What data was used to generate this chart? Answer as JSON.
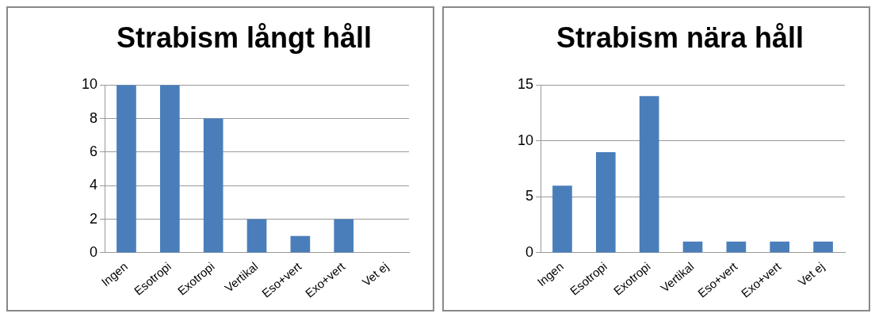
{
  "chart_data": [
    {
      "type": "bar",
      "title": "Strabism långt håll",
      "categories": [
        "Ingen",
        "Esotropi",
        "Exotropi",
        "Vertikal",
        "Eso+vert",
        "Exo+vert",
        "Vet ej"
      ],
      "values": [
        10,
        10,
        8,
        2,
        1,
        2,
        0
      ],
      "color": "#4a7ebb",
      "ylim": [
        0,
        10
      ],
      "yticks": [
        0,
        2,
        4,
        6,
        8,
        10
      ],
      "grid": "y"
    },
    {
      "type": "bar",
      "title": "Strabism nära håll",
      "categories": [
        "Ingen",
        "Esotropi",
        "Exotropi",
        "Vertikal",
        "Eso+vert",
        "Exo+vert",
        "Vet ej"
      ],
      "values": [
        6,
        9,
        14,
        1,
        1,
        1,
        1
      ],
      "color": "#4a7ebb",
      "ylim": [
        0,
        15
      ],
      "yticks": [
        0,
        5,
        10,
        15
      ],
      "grid": "y"
    }
  ]
}
